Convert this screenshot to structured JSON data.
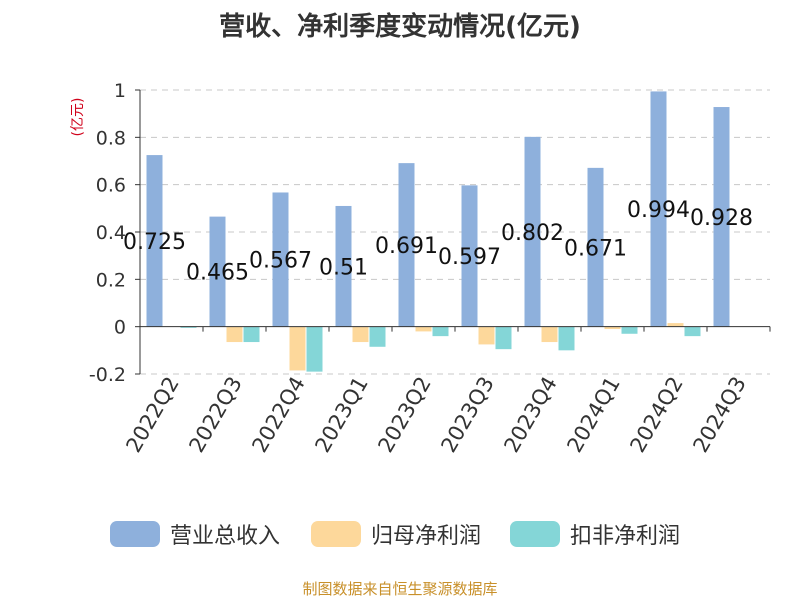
{
  "title": "营收、净利季度变动情况(亿元)",
  "unit_label": "(亿元)",
  "source": "制图数据来自恒生聚源数据库",
  "colors": {
    "revenue": "#8eb0dc",
    "net_profit_parent": "#fdd89b",
    "net_profit_nonrecurring": "#84d6d7",
    "grid": "#c8c8c8",
    "axis": "#333333",
    "text": "#333333"
  },
  "legend": [
    {
      "label": "营业总收入",
      "color": "#8eb0dc"
    },
    {
      "label": "归母净利润",
      "color": "#fdd89b"
    },
    {
      "label": "扣非净利润",
      "color": "#84d6d7"
    }
  ],
  "chart_data": {
    "type": "bar",
    "title": "营收、净利季度变动情况(亿元)",
    "ylabel": "(亿元)",
    "ylim": [
      -0.2,
      1
    ],
    "yticks": [
      1,
      0.8,
      0.6,
      0.4,
      0.2,
      0,
      -0.2
    ],
    "ytick_labels": [
      "1",
      "0.8",
      "0.6",
      "0.4",
      "0.2",
      "0",
      "-0.2"
    ],
    "grid": true,
    "legend_position": "bottom",
    "categories": [
      "2022Q2",
      "2022Q3",
      "2022Q4",
      "2023Q1",
      "2023Q2",
      "2023Q3",
      "2023Q4",
      "2024Q1",
      "2024Q2",
      "2024Q3"
    ],
    "series": [
      {
        "name": "营业总收入",
        "values": [
          0.725,
          0.465,
          0.567,
          0.51,
          0.691,
          0.597,
          0.802,
          0.671,
          0.994,
          0.928
        ],
        "labels": [
          "0.725",
          "0.465",
          "0.567",
          "0.51",
          "0.691",
          "0.597",
          "0.802",
          "0.671",
          "0.994",
          "0.928"
        ]
      },
      {
        "name": "归母净利润",
        "values": [
          0.0,
          -0.065,
          -0.185,
          -0.065,
          -0.02,
          -0.075,
          -0.065,
          -0.01,
          0.015,
          0.0
        ]
      },
      {
        "name": "扣非净利润",
        "values": [
          -0.005,
          -0.065,
          -0.19,
          -0.085,
          -0.04,
          -0.095,
          -0.1,
          -0.03,
          -0.04,
          0.0
        ]
      }
    ]
  }
}
